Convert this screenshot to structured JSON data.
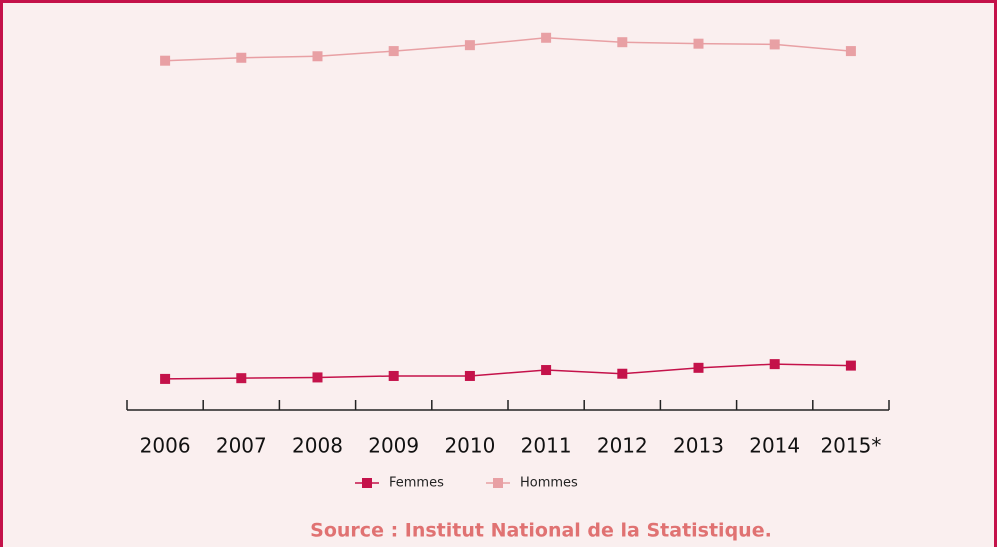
{
  "chart_data": {
    "type": "line",
    "categories": [
      "2006",
      "2007",
      "2008",
      "2009",
      "2010",
      "2011",
      "2012",
      "2013",
      "2014",
      "2015*"
    ],
    "series": [
      {
        "name": "Femmes",
        "color": "#c4124a",
        "values": [
          24.6,
          24.7,
          24.8,
          25.0,
          25.0,
          25.8,
          25.3,
          26.1,
          26.6,
          26.4
        ]
      },
      {
        "name": "Hommes",
        "color": "#e8a0a4",
        "values": [
          67.6,
          68.0,
          68.2,
          68.9,
          69.7,
          70.7,
          70.1,
          69.9,
          69.8,
          68.9
        ]
      }
    ],
    "ylim": [
      20.4,
      73.1
    ],
    "source": "Source : Institut National de la Statistique."
  }
}
